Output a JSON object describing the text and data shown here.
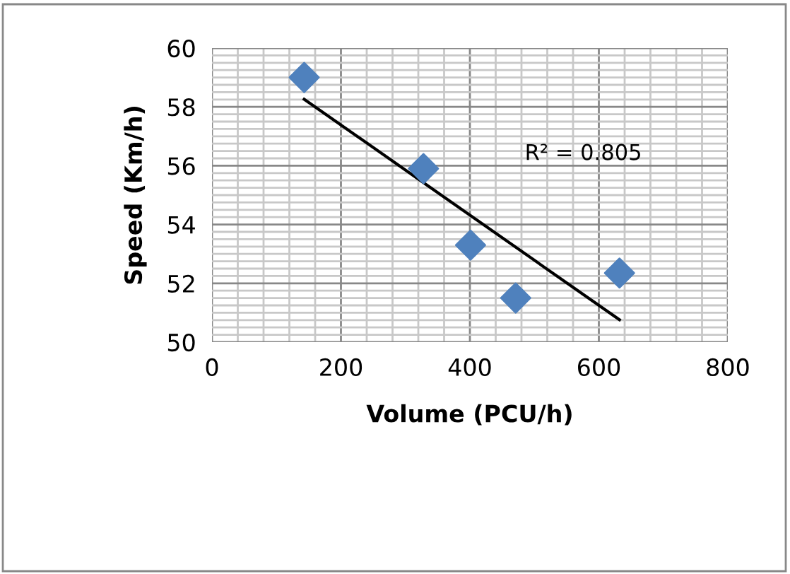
{
  "chart_data": {
    "type": "scatter",
    "xlabel": "Volume (PCU/h)",
    "ylabel": "Speed (Km/h)",
    "series": [
      {
        "color": "#4f81bd",
        "marker": "diamond",
        "x": [
          143,
          328,
          401,
          471,
          632
        ],
        "values": [
          59.0,
          55.9,
          53.3,
          51.5,
          52.35
        ]
      },
      {
        "type": "line",
        "color": "#000000",
        "marker": "none",
        "line_style": "solid",
        "x": [
          143,
          632
        ],
        "values": [
          58.26,
          50.76
        ]
      }
    ],
    "annotations": [
      "R² = 0.805"
    ],
    "xlim": [
      0,
      800
    ],
    "xticks": [
      0,
      200,
      400,
      600,
      800
    ],
    "ylim": [
      50,
      60
    ],
    "yticks": [
      50,
      52,
      54,
      56,
      58,
      60
    ],
    "grid": true,
    "legend": false
  }
}
